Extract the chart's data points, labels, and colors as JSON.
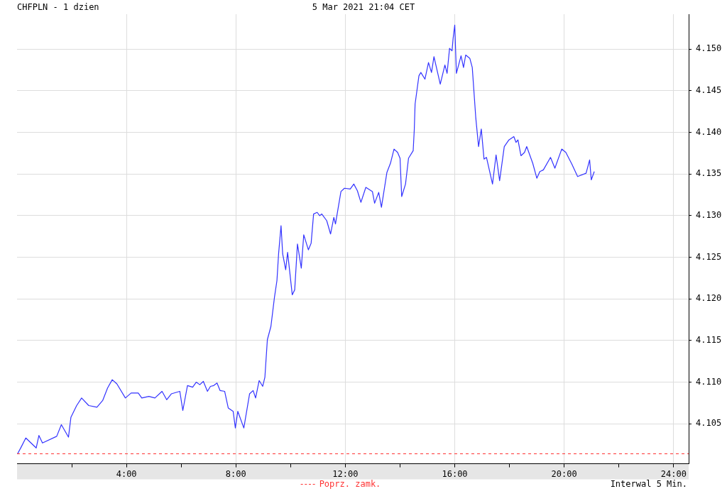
{
  "chart_data": {
    "type": "line",
    "title": "CHFPLN - 1 dzien",
    "subtitle": "5 Mar 2021 21:04 CET",
    "annotations": [
      "Interwal 5 Min."
    ],
    "xlim": [
      0,
      24.55
    ],
    "xticks": [
      {
        "value": 2,
        "label": null
      },
      {
        "value": 4,
        "label": "4:00"
      },
      {
        "value": 6,
        "label": null
      },
      {
        "value": 8,
        "label": "8:00"
      },
      {
        "value": 10,
        "label": null
      },
      {
        "value": 12,
        "label": "12:00"
      },
      {
        "value": 14,
        "label": null
      },
      {
        "value": 16,
        "label": "16:00"
      },
      {
        "value": 18,
        "label": null
      },
      {
        "value": 20,
        "label": "20:00"
      },
      {
        "value": 22,
        "label": null
      },
      {
        "value": 24,
        "label": "24:00"
      }
    ],
    "ylim": [
      4.1002,
      4.1542
    ],
    "yticks": [
      {
        "value": 4.105,
        "label": "4.105"
      },
      {
        "value": 4.11,
        "label": "4.110"
      },
      {
        "value": 4.115,
        "label": "4.115"
      },
      {
        "value": 4.12,
        "label": "4.120"
      },
      {
        "value": 4.125,
        "label": "4.125"
      },
      {
        "value": 4.13,
        "label": "4.130"
      },
      {
        "value": 4.135,
        "label": "4.135"
      },
      {
        "value": 4.14,
        "label": "4.140"
      },
      {
        "value": 4.145,
        "label": "4.145"
      },
      {
        "value": 4.15,
        "label": "4.150"
      }
    ],
    "grid": true,
    "legend": "bottom",
    "marker": "none",
    "line_style": "solid",
    "ref_lines": [
      {
        "axis": "y",
        "value": 4.1014,
        "label": "Poprz. zamk.",
        "color": "#ff3333",
        "line_style": "dashed"
      }
    ],
    "series": [
      {
        "color": "#3333ff",
        "x": [
          0.02,
          0.15,
          0.32,
          0.7,
          0.8,
          0.93,
          1.45,
          1.62,
          1.88,
          1.97,
          2.18,
          2.36,
          2.62,
          2.92,
          3.13,
          3.31,
          3.48,
          3.65,
          3.96,
          4.17,
          4.43,
          4.56,
          4.82,
          5.04,
          5.3,
          5.47,
          5.64,
          5.95,
          6.06,
          6.23,
          6.42,
          6.55,
          6.68,
          6.81,
          6.96,
          7.07,
          7.19,
          7.31,
          7.42,
          7.59,
          7.72,
          7.9,
          7.98,
          8.07,
          8.29,
          8.5,
          8.63,
          8.72,
          8.85,
          8.98,
          9.06,
          9.15,
          9.28,
          9.41,
          9.5,
          9.56,
          9.65,
          9.71,
          9.82,
          9.89,
          10.06,
          10.15,
          10.25,
          10.39,
          10.48,
          10.65,
          10.75,
          10.84,
          10.97,
          11.06,
          11.14,
          11.32,
          11.46,
          11.58,
          11.64,
          11.84,
          11.97,
          12.18,
          12.31,
          12.44,
          12.57,
          12.75,
          12.99,
          13.07,
          13.22,
          13.32,
          13.52,
          13.65,
          13.78,
          13.91,
          14.0,
          14.06,
          14.2,
          14.31,
          14.48,
          14.52,
          14.55,
          14.69,
          14.76,
          14.91,
          15.04,
          15.15,
          15.24,
          15.47,
          15.64,
          15.72,
          15.81,
          15.9,
          15.94,
          16.0,
          16.06,
          16.23,
          16.32,
          16.4,
          16.55,
          16.64,
          16.77,
          16.87,
          16.97,
          17.07,
          17.16,
          17.38,
          17.51,
          17.64,
          17.81,
          17.98,
          18.16,
          18.24,
          18.31,
          18.42,
          18.55,
          18.63,
          18.85,
          19.0,
          19.11,
          19.24,
          19.5,
          19.66,
          19.91,
          20.06,
          20.28,
          20.49,
          20.8,
          20.93,
          20.99,
          21.1
        ],
        "values": [
          4.1014,
          4.1022,
          4.1033,
          4.1021,
          4.1036,
          4.1027,
          4.1035,
          4.1049,
          4.1034,
          4.1058,
          4.1072,
          4.1081,
          4.1072,
          4.107,
          4.1078,
          4.1093,
          4.1103,
          4.1098,
          4.1081,
          4.1087,
          4.1087,
          4.1081,
          4.1083,
          4.1081,
          4.1089,
          4.1079,
          4.1086,
          4.1089,
          4.1066,
          4.1096,
          4.1094,
          4.11,
          4.1097,
          4.1101,
          4.1089,
          4.1095,
          4.1096,
          4.1099,
          4.109,
          4.1089,
          4.1069,
          4.1065,
          4.1045,
          4.1065,
          4.1045,
          4.1086,
          4.109,
          4.1081,
          4.1102,
          4.1095,
          4.1106,
          4.1151,
          4.1167,
          4.1202,
          4.1222,
          4.1254,
          4.1288,
          4.1254,
          4.1235,
          4.1256,
          4.1205,
          4.1211,
          4.1266,
          4.1237,
          4.1277,
          4.1259,
          4.1267,
          4.1302,
          4.1304,
          4.13,
          4.1302,
          4.1294,
          4.1278,
          4.1298,
          4.129,
          4.1329,
          4.1333,
          4.1332,
          4.1338,
          4.133,
          4.1316,
          4.1334,
          4.1329,
          4.1315,
          4.1328,
          4.131,
          4.1352,
          4.1363,
          4.138,
          4.1376,
          4.1369,
          4.1323,
          4.1338,
          4.1369,
          4.1378,
          4.1403,
          4.1434,
          4.1468,
          4.1472,
          4.1464,
          4.1484,
          4.1472,
          4.1491,
          4.1458,
          4.1481,
          4.1471,
          4.1501,
          4.1498,
          4.1513,
          4.1529,
          4.1471,
          4.1492,
          4.1478,
          4.1493,
          4.1489,
          4.1478,
          4.1417,
          4.1383,
          4.1404,
          4.1368,
          4.137,
          4.1338,
          4.1373,
          4.1342,
          4.1383,
          4.1391,
          4.1395,
          4.1388,
          4.1391,
          4.1372,
          4.1376,
          4.1383,
          4.1363,
          4.1345,
          4.1353,
          4.1355,
          4.137,
          4.1357,
          4.138,
          4.1376,
          4.1362,
          4.1347,
          4.1351,
          4.1367,
          4.1343,
          4.1353
        ]
      }
    ]
  }
}
